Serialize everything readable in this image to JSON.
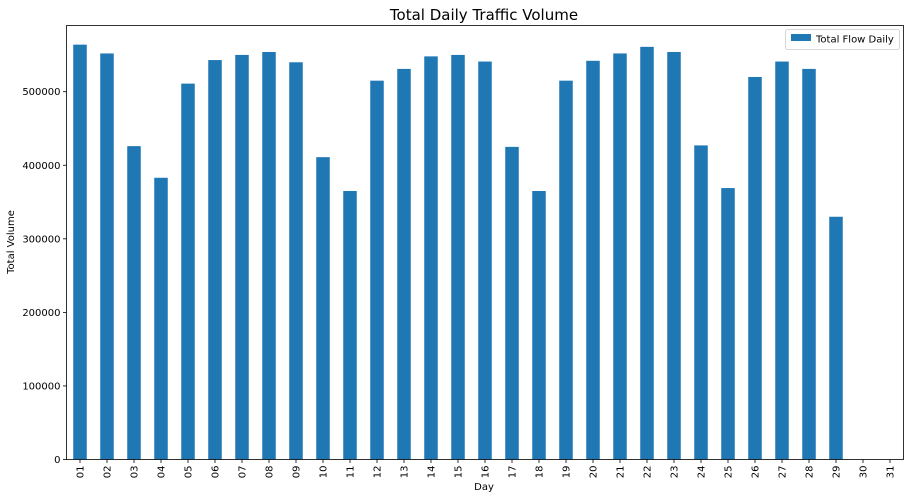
{
  "chart_data": {
    "type": "bar",
    "title": "Total Daily Traffic Volume",
    "xlabel": "Day",
    "ylabel": "Total Volume",
    "categories": [
      "01",
      "02",
      "03",
      "04",
      "05",
      "06",
      "07",
      "08",
      "09",
      "10",
      "11",
      "12",
      "13",
      "14",
      "15",
      "16",
      "17",
      "18",
      "19",
      "20",
      "21",
      "22",
      "23",
      "24",
      "25",
      "26",
      "27",
      "28",
      "29",
      "30",
      "31"
    ],
    "series": [
      {
        "name": "Total Flow Daily",
        "color": "#1f77b4",
        "values": [
          564000,
          552000,
          426000,
          383000,
          511000,
          543000,
          550000,
          554000,
          540000,
          411000,
          365000,
          515000,
          531000,
          548000,
          550000,
          541000,
          425000,
          365000,
          515000,
          542000,
          552000,
          561000,
          554000,
          427000,
          369000,
          520000,
          541000,
          531000,
          330000,
          0,
          0
        ]
      }
    ],
    "ylim": [
      0,
      590000
    ],
    "yticks": [
      0,
      100000,
      200000,
      300000,
      400000,
      500000
    ],
    "ytick_labels": [
      "0",
      "100000",
      "200000",
      "300000",
      "400000",
      "500000"
    ],
    "grid": false,
    "legend_position": "top-right"
  }
}
